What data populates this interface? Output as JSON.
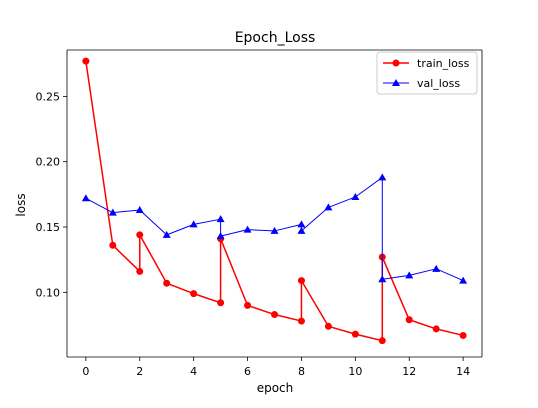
{
  "chart_data": {
    "type": "line",
    "title": "Epoch_Loss",
    "xlabel": "epoch",
    "ylabel": "loss",
    "xlim": [
      -0.7,
      14.7
    ],
    "ylim": [
      0.0505,
      0.2855
    ],
    "xticks": [
      0,
      2,
      4,
      6,
      8,
      10,
      12,
      14
    ],
    "xtick_labels": [
      "0",
      "2",
      "4",
      "6",
      "8",
      "10",
      "12",
      "14"
    ],
    "yticks": [
      0.1,
      0.15,
      0.2,
      0.25
    ],
    "ytick_labels": [
      "0.10",
      "0.15",
      "0.20",
      "0.25"
    ],
    "grid": false,
    "legend_position": "top-right",
    "series": [
      {
        "name": "train_loss",
        "color": "#ff0000",
        "marker": "circle",
        "x": [
          0,
          1,
          2,
          2,
          3,
          4,
          5,
          5,
          6,
          7,
          8,
          8,
          9,
          10,
          11,
          11,
          12,
          13,
          14
        ],
        "y": [
          0.277,
          0.136,
          0.116,
          0.144,
          0.107,
          0.099,
          0.092,
          0.141,
          0.09,
          0.083,
          0.078,
          0.109,
          0.074,
          0.068,
          0.063,
          0.127,
          0.079,
          0.072,
          0.067
        ]
      },
      {
        "name": "val_loss",
        "color": "#0000ff",
        "marker": "triangle",
        "x": [
          0,
          1,
          2,
          3,
          4,
          5,
          5,
          6,
          7,
          8,
          8,
          9,
          10,
          11,
          11,
          12,
          13,
          14
        ],
        "y": [
          0.172,
          0.161,
          0.163,
          0.144,
          0.152,
          0.156,
          0.143,
          0.148,
          0.147,
          0.152,
          0.147,
          0.165,
          0.173,
          0.188,
          0.11,
          0.113,
          0.118,
          0.109
        ]
      }
    ]
  }
}
